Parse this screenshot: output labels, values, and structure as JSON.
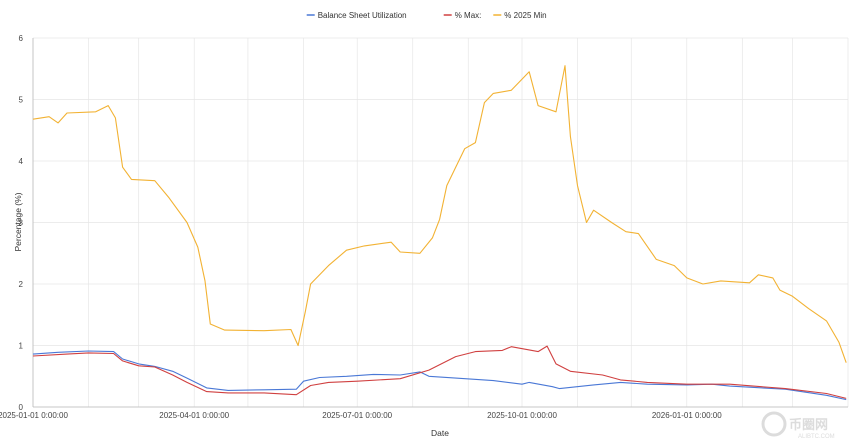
{
  "chart_data": {
    "type": "line",
    "title": "",
    "xlabel": "Date",
    "ylabel": "Percentage (%)",
    "ylim": [
      0,
      6
    ],
    "yticks": [
      "0",
      "1",
      "2",
      "3",
      "4",
      "5",
      "6"
    ],
    "xlim": [
      "2025-01-01",
      "2026-04-01"
    ],
    "xticks": [
      {
        "date": "2025-01-01",
        "label": "2025-01-01 0:00:00"
      },
      {
        "date": "2025-04-01",
        "label": "2025-04-01 0:00:00"
      },
      {
        "date": "2025-07-01",
        "label": "2025-07-01 0:00:00"
      },
      {
        "date": "2025-10-01",
        "label": "2025-10-01 0:00:00"
      },
      {
        "date": "2026-01-01",
        "label": "2026-01-01 0:00:00"
      }
    ],
    "grid": true,
    "legend_position": "top-center",
    "series": [
      {
        "name": "Balance Sheet Utilization",
        "color": "#4a78d6",
        "points": [
          [
            "2025-01-01",
            0.86
          ],
          [
            "2025-01-15",
            0.89
          ],
          [
            "2025-02-01",
            0.91
          ],
          [
            "2025-02-15",
            0.9
          ],
          [
            "2025-02-20",
            0.78
          ],
          [
            "2025-03-01",
            0.7
          ],
          [
            "2025-03-10",
            0.66
          ],
          [
            "2025-03-20",
            0.58
          ],
          [
            "2025-03-28",
            0.47
          ],
          [
            "2025-04-08",
            0.31
          ],
          [
            "2025-04-20",
            0.27
          ],
          [
            "2025-05-10",
            0.28
          ],
          [
            "2025-05-28",
            0.29
          ],
          [
            "2025-06-01",
            0.42
          ],
          [
            "2025-06-10",
            0.48
          ],
          [
            "2025-06-25",
            0.5
          ],
          [
            "2025-07-10",
            0.53
          ],
          [
            "2025-07-25",
            0.52
          ],
          [
            "2025-08-05",
            0.57
          ],
          [
            "2025-08-10",
            0.5
          ],
          [
            "2025-08-25",
            0.47
          ],
          [
            "2025-09-15",
            0.43
          ],
          [
            "2025-10-01",
            0.37
          ],
          [
            "2025-10-05",
            0.4
          ],
          [
            "2025-10-18",
            0.33
          ],
          [
            "2025-10-22",
            0.3
          ],
          [
            "2025-11-10",
            0.36
          ],
          [
            "2025-11-25",
            0.4
          ],
          [
            "2025-12-10",
            0.37
          ],
          [
            "2026-01-01",
            0.36
          ],
          [
            "2026-01-15",
            0.37
          ],
          [
            "2026-01-25",
            0.34
          ],
          [
            "2026-02-25",
            0.29
          ],
          [
            "2026-03-20",
            0.19
          ],
          [
            "2026-03-31",
            0.12
          ]
        ]
      },
      {
        "name": "% Max:",
        "color": "#d04040",
        "points": [
          [
            "2025-01-01",
            0.83
          ],
          [
            "2025-01-20",
            0.86
          ],
          [
            "2025-02-01",
            0.88
          ],
          [
            "2025-02-15",
            0.87
          ],
          [
            "2025-02-20",
            0.75
          ],
          [
            "2025-03-01",
            0.67
          ],
          [
            "2025-03-10",
            0.65
          ],
          [
            "2025-03-20",
            0.52
          ],
          [
            "2025-03-28",
            0.4
          ],
          [
            "2025-04-08",
            0.25
          ],
          [
            "2025-04-20",
            0.23
          ],
          [
            "2025-05-10",
            0.23
          ],
          [
            "2025-05-28",
            0.2
          ],
          [
            "2025-06-05",
            0.35
          ],
          [
            "2025-06-15",
            0.4
          ],
          [
            "2025-07-01",
            0.42
          ],
          [
            "2025-07-25",
            0.46
          ],
          [
            "2025-08-10",
            0.6
          ],
          [
            "2025-08-25",
            0.82
          ],
          [
            "2025-09-05",
            0.9
          ],
          [
            "2025-09-20",
            0.92
          ],
          [
            "2025-09-25",
            0.98
          ],
          [
            "2025-10-10",
            0.9
          ],
          [
            "2025-10-15",
            0.99
          ],
          [
            "2025-10-20",
            0.7
          ],
          [
            "2025-10-28",
            0.58
          ],
          [
            "2025-11-15",
            0.52
          ],
          [
            "2025-11-25",
            0.44
          ],
          [
            "2025-12-10",
            0.4
          ],
          [
            "2026-01-01",
            0.37
          ],
          [
            "2026-01-25",
            0.37
          ],
          [
            "2026-02-25",
            0.3
          ],
          [
            "2026-03-20",
            0.22
          ],
          [
            "2026-03-31",
            0.14
          ]
        ]
      },
      {
        "name": "% 2025 Min",
        "color": "#f2b233",
        "points": [
          [
            "2025-01-01",
            4.68
          ],
          [
            "2025-01-10",
            4.72
          ],
          [
            "2025-01-15",
            4.62
          ],
          [
            "2025-01-20",
            4.78
          ],
          [
            "2025-02-05",
            4.8
          ],
          [
            "2025-02-12",
            4.9
          ],
          [
            "2025-02-16",
            4.7
          ],
          [
            "2025-02-20",
            3.9
          ],
          [
            "2025-02-25",
            3.7
          ],
          [
            "2025-03-10",
            3.68
          ],
          [
            "2025-03-18",
            3.4
          ],
          [
            "2025-03-28",
            3.0
          ],
          [
            "2025-04-03",
            2.6
          ],
          [
            "2025-04-07",
            2.05
          ],
          [
            "2025-04-10",
            1.35
          ],
          [
            "2025-04-18",
            1.25
          ],
          [
            "2025-05-10",
            1.24
          ],
          [
            "2025-05-25",
            1.26
          ],
          [
            "2025-05-29",
            1.0
          ],
          [
            "2025-06-02",
            1.55
          ],
          [
            "2025-06-05",
            2.0
          ],
          [
            "2025-06-15",
            2.3
          ],
          [
            "2025-06-25",
            2.55
          ],
          [
            "2025-07-05",
            2.62
          ],
          [
            "2025-07-20",
            2.68
          ],
          [
            "2025-07-25",
            2.52
          ],
          [
            "2025-08-05",
            2.5
          ],
          [
            "2025-08-12",
            2.75
          ],
          [
            "2025-08-16",
            3.05
          ],
          [
            "2025-08-20",
            3.6
          ],
          [
            "2025-08-25",
            3.9
          ],
          [
            "2025-08-30",
            4.2
          ],
          [
            "2025-09-05",
            4.3
          ],
          [
            "2025-09-10",
            4.95
          ],
          [
            "2025-09-15",
            5.1
          ],
          [
            "2025-09-25",
            5.15
          ],
          [
            "2025-10-05",
            5.45
          ],
          [
            "2025-10-10",
            4.9
          ],
          [
            "2025-10-20",
            4.8
          ],
          [
            "2025-10-25",
            5.55
          ],
          [
            "2025-10-28",
            4.4
          ],
          [
            "2025-11-01",
            3.6
          ],
          [
            "2025-11-06",
            3.0
          ],
          [
            "2025-11-10",
            3.2
          ],
          [
            "2025-11-20",
            3.0
          ],
          [
            "2025-11-28",
            2.85
          ],
          [
            "2025-12-05",
            2.82
          ],
          [
            "2025-12-15",
            2.4
          ],
          [
            "2025-12-25",
            2.3
          ],
          [
            "2026-01-01",
            2.1
          ],
          [
            "2026-01-10",
            2.0
          ],
          [
            "2026-01-20",
            2.05
          ],
          [
            "2026-02-05",
            2.02
          ],
          [
            "2026-02-10",
            2.15
          ],
          [
            "2026-02-18",
            2.1
          ],
          [
            "2026-02-22",
            1.9
          ],
          [
            "2026-03-01",
            1.8
          ],
          [
            "2026-03-10",
            1.6
          ],
          [
            "2026-03-20",
            1.4
          ],
          [
            "2026-03-27",
            1.05
          ],
          [
            "2026-03-31",
            0.72
          ]
        ]
      }
    ]
  },
  "watermark": {
    "brand": "币圈网",
    "site": "ALIBTC.COM"
  }
}
